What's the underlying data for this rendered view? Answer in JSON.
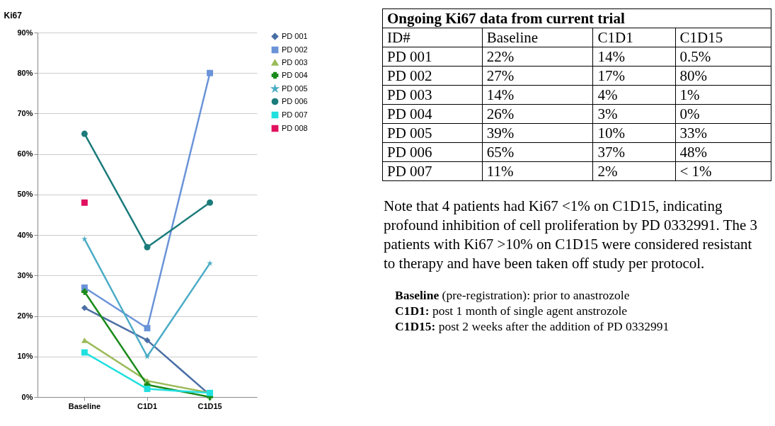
{
  "chart_data": [
    {
      "type": "line",
      "ylabel": "Ki67",
      "categories": [
        "Baseline",
        "C1D1",
        "C1D15"
      ],
      "ylim": [
        0,
        90
      ],
      "yticks": [
        {
          "value": 0,
          "label": "0%"
        },
        {
          "value": 10,
          "label": "10%"
        },
        {
          "value": 20,
          "label": "20%"
        },
        {
          "value": 30,
          "label": "30%"
        },
        {
          "value": 40,
          "label": "40%"
        },
        {
          "value": 50,
          "label": "50%"
        },
        {
          "value": 60,
          "label": "60%"
        },
        {
          "value": 70,
          "label": "70%"
        },
        {
          "value": 80,
          "label": "80%"
        },
        {
          "value": 90,
          "label": "90%"
        }
      ],
      "grid": "y",
      "legend": "right",
      "series": [
        {
          "name": "PD 001",
          "color": "#4a6fa5",
          "marker": "diamond",
          "values": [
            22,
            14,
            0.5
          ]
        },
        {
          "name": "PD 002",
          "color": "#6a93d8",
          "marker": "square",
          "values": [
            27,
            17,
            80
          ]
        },
        {
          "name": "PD 003",
          "color": "#9bbb59",
          "marker": "triangle",
          "values": [
            14,
            4,
            1
          ]
        },
        {
          "name": "PD 004",
          "color": "#1a8a1a",
          "marker": "cross",
          "values": [
            26,
            3,
            0
          ]
        },
        {
          "name": "PD 005",
          "color": "#4bacc6",
          "marker": "star",
          "values": [
            39,
            10,
            33
          ]
        },
        {
          "name": "PD 006",
          "color": "#1b7b7b",
          "marker": "circle",
          "values": [
            65,
            37,
            48
          ]
        },
        {
          "name": "PD 007",
          "color": "#22e0e0",
          "marker": "square",
          "values": [
            11,
            2,
            1
          ]
        },
        {
          "name": "PD 008",
          "color": "#e0105f",
          "marker": "square",
          "values": [
            48,
            null,
            null
          ]
        }
      ]
    },
    {
      "type": "other",
      "title": "Ongoing Ki67 data from current trial",
      "categories": [
        "ID#",
        "Baseline",
        "C1D1",
        "C1D15"
      ],
      "y_categories": [
        "PD 001",
        "PD 002",
        "PD 003",
        "PD 004",
        "PD 005",
        "PD 006",
        "PD 007"
      ],
      "cell_labels": [
        [
          "22%",
          "14%",
          "0.5%"
        ],
        [
          "27%",
          "17%",
          "80%"
        ],
        [
          "14%",
          "4%",
          "1%"
        ],
        [
          "26%",
          "3%",
          "0%"
        ],
        [
          "39%",
          "10%",
          "33%"
        ],
        [
          "65%",
          "37%",
          "48%"
        ],
        [
          "11%",
          "2%",
          "< 1%"
        ]
      ],
      "annotations": [
        "Note that 4 patients had Ki67 <1% on C1D15, indicating profound inhibition of cell proliferation by PD 0332991. The 3 patients with Ki67 >10% on C1D15 were considered resistant to therapy and have been taken off study per protocol.",
        "Baseline (pre-registration): prior to anastrozole",
        "C1D1: post 1 month of single agent anstrozole",
        "C1D15: post 2 weeks after the addition of PD 0332991"
      ]
    }
  ]
}
